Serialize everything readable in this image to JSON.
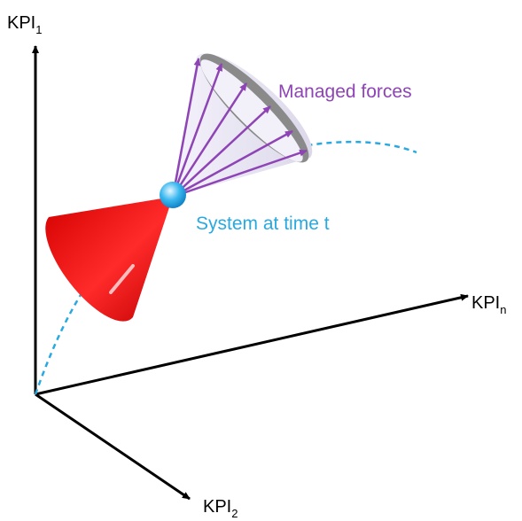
{
  "axes": {
    "kpi1": {
      "main": "KPI",
      "sub": "1"
    },
    "kpin": {
      "main": "KPI",
      "sub": "n"
    },
    "kpi2": {
      "main": "KPI",
      "sub": "2"
    }
  },
  "labels": {
    "forces": "Managed forces",
    "system": "System at time t"
  }
}
